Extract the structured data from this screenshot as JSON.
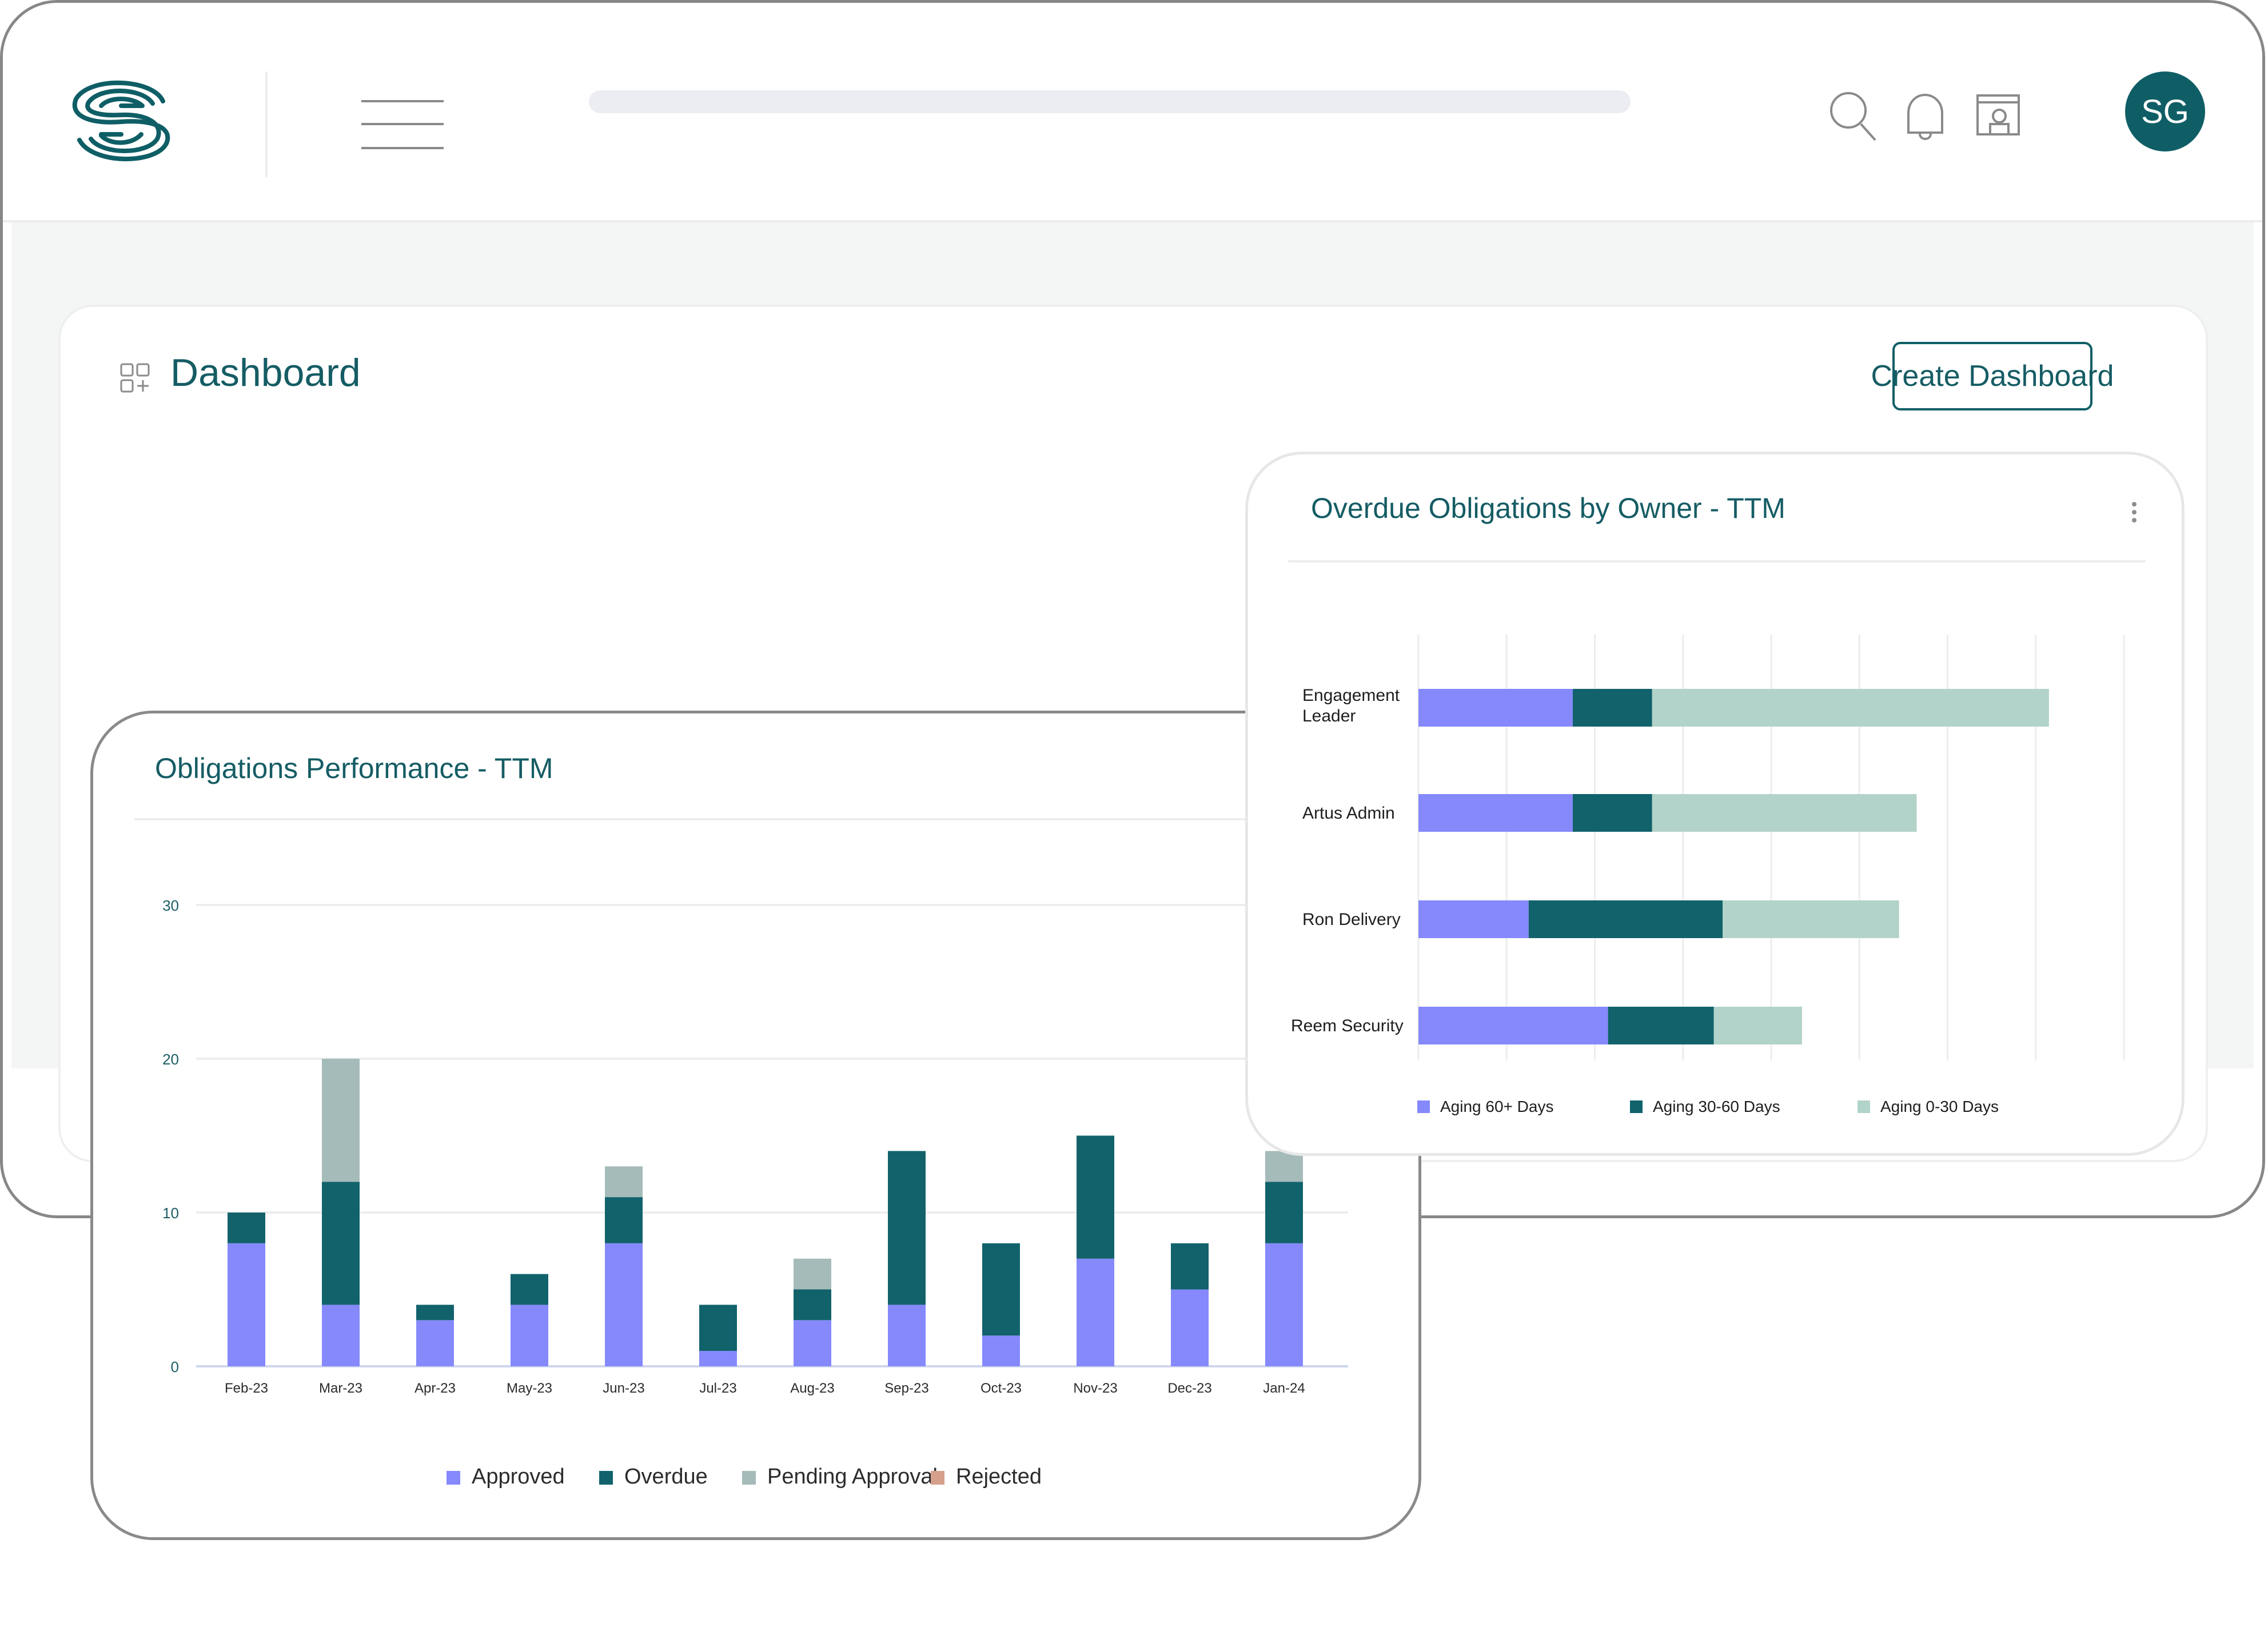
{
  "header": {
    "logo": "artus-logo",
    "avatar_initials": "SG",
    "icons": [
      "menu-icon",
      "search-icon",
      "bell-icon",
      "profile-window-icon"
    ]
  },
  "dashboard": {
    "title": "Dashboard",
    "create_button": "Create Dashboard"
  },
  "colors": {
    "approved": "#8589fc",
    "overdue": "#11626b",
    "pending": "#a5bbba",
    "rejected": "#d5a08c",
    "aging_60": "#8589fc",
    "aging_30_60": "#11626b",
    "aging_0_30": "#b2d3c9",
    "accent": "#0f5e66"
  },
  "performance": {
    "title": "Obligations Performance - TTM",
    "legend": [
      "Approved",
      "Overdue",
      "Pending Approval",
      "Rejected"
    ],
    "chart_data": {
      "type": "bar",
      "stacked": true,
      "categories": [
        "Feb-23",
        "Mar-23",
        "Apr-23",
        "May-23",
        "Jun-23",
        "Jul-23",
        "Aug-23",
        "Sep-23",
        "Oct-23",
        "Nov-23",
        "Dec-23",
        "Jan-24"
      ],
      "series": [
        {
          "name": "Approved",
          "values": [
            8,
            4,
            3,
            4,
            8,
            1,
            3,
            4,
            2,
            7,
            5,
            8
          ]
        },
        {
          "name": "Overdue",
          "values": [
            2,
            8,
            1,
            2,
            3,
            3,
            2,
            10,
            6,
            8,
            3,
            4
          ]
        },
        {
          "name": "Pending Approval",
          "values": [
            0,
            8,
            0,
            0,
            2,
            0,
            2,
            0,
            0,
            0,
            0,
            2
          ]
        },
        {
          "name": "Rejected",
          "values": [
            0,
            0,
            0,
            0,
            0,
            0,
            0,
            0,
            0,
            0,
            0,
            0
          ]
        }
      ],
      "yticks": [
        0,
        10,
        20,
        30
      ],
      "ylim": [
        0,
        30
      ],
      "grid": true,
      "legend_position": "bottom"
    }
  },
  "owners": {
    "title": "Overdue Obligations by Owner - TTM",
    "legend": [
      "Aging 60+ Days",
      "Aging 30-60 Days",
      "Aging 0-30 Days"
    ],
    "chart_data": {
      "type": "bar",
      "orientation": "horizontal",
      "stacked": true,
      "categories": [
        [
          "Engagement",
          "Leader"
        ],
        [
          "Artus Admin"
        ],
        [
          "Ron Delivery"
        ],
        [
          "Reem Security"
        ]
      ],
      "series": [
        {
          "name": "Aging 60+ Days",
          "values": [
            3.5,
            3.5,
            2.5,
            4.3
          ]
        },
        {
          "name": "Aging 30-60 Days",
          "values": [
            1.8,
            1.8,
            4.4,
            2.4
          ]
        },
        {
          "name": "Aging 0-30 Days",
          "values": [
            9.0,
            6.0,
            4.0,
            2.0
          ]
        }
      ],
      "xlim": [
        0,
        16
      ],
      "grid": true,
      "legend_position": "bottom"
    }
  }
}
